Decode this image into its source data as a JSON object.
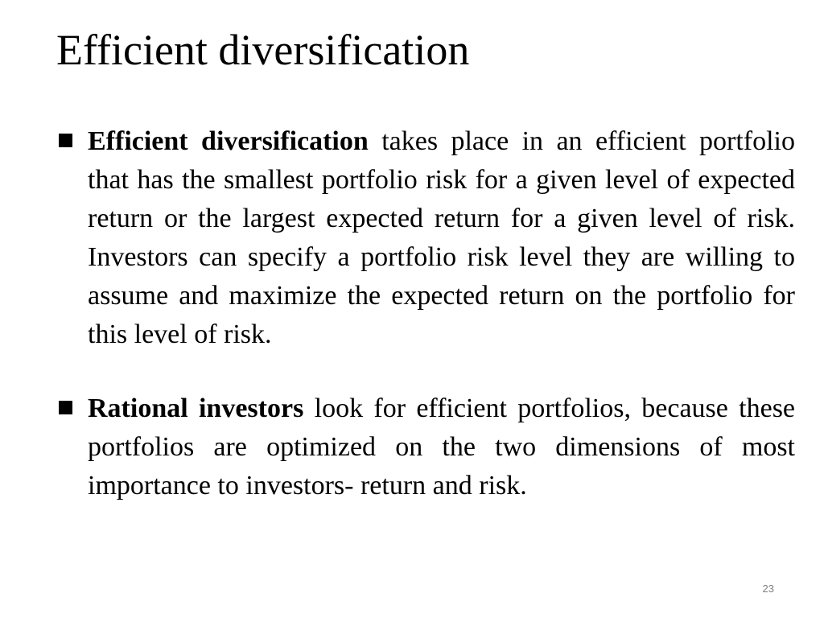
{
  "slide": {
    "title": "Efficient diversification",
    "page_number": "23",
    "bullets": [
      {
        "term": "Efficient diversification",
        "text": "takes place in an efficient portfolio that has the smallest portfolio risk for a given level of expected return or the largest expected return for a given level of risk. Investors can specify a portfolio risk level they are willing to assume and maximize the expected return on the portfolio for this level of risk."
      },
      {
        "term": "Rational investors",
        "text": "look for efficient portfolios, because these portfolios are optimized on the two dimensions of most importance to investors- return and risk."
      }
    ]
  },
  "colors": {
    "text": "#000000",
    "background": "#ffffff",
    "page_number": "#7f7f7f"
  },
  "icons": {
    "bullet": "square-bullet-icon"
  }
}
